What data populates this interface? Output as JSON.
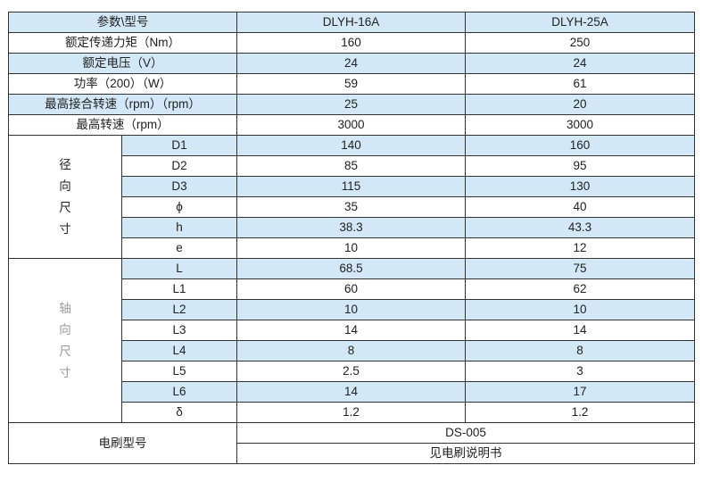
{
  "colors": {
    "shade": "#d3e8f7",
    "border": "#333333"
  },
  "header": {
    "param": "参数\\型号",
    "models": [
      "DLYH-16A",
      "DLYH-25A"
    ]
  },
  "general": [
    {
      "label": "额定传递力矩（Nm）",
      "values": [
        "160",
        "250"
      ]
    },
    {
      "label": "额定电压（V）",
      "values": [
        "24",
        "24"
      ]
    },
    {
      "label": "功率（200）（W）",
      "values": [
        "59",
        "61"
      ]
    },
    {
      "label": "最高接合转速（rpm）（rpm）",
      "values": [
        "25",
        "20"
      ]
    },
    {
      "label": "最高转速（rpm）",
      "values": [
        "3000",
        "3000"
      ]
    }
  ],
  "radial": {
    "group_label": [
      "径",
      "向",
      "尺",
      "寸"
    ],
    "rows": [
      {
        "label": "D1",
        "values": [
          "140",
          "160"
        ]
      },
      {
        "label": "D2",
        "values": [
          "85",
          "95"
        ]
      },
      {
        "label": "D3",
        "values": [
          "115",
          "130"
        ]
      },
      {
        "label": "ϕ",
        "values": [
          "35",
          "40"
        ]
      },
      {
        "label": "h",
        "values": [
          "38.3",
          "43.3"
        ]
      },
      {
        "label": "e",
        "values": [
          "10",
          "12"
        ]
      }
    ]
  },
  "axial": {
    "group_label": [
      "轴",
      "向",
      "尺",
      "寸"
    ],
    "rows": [
      {
        "label": "L",
        "values": [
          "68.5",
          "75"
        ]
      },
      {
        "label": "L1",
        "values": [
          "60",
          "62"
        ]
      },
      {
        "label": "L2",
        "values": [
          "10",
          "10"
        ]
      },
      {
        "label": "L3",
        "values": [
          "14",
          "14"
        ]
      },
      {
        "label": "L4",
        "values": [
          "8",
          "8"
        ]
      },
      {
        "label": "L5",
        "values": [
          "2.5",
          "3"
        ]
      },
      {
        "label": "L6",
        "values": [
          "14",
          "17"
        ]
      },
      {
        "label": "δ",
        "values": [
          "1.2",
          "1.2"
        ]
      }
    ]
  },
  "brush": {
    "label": "电刷型号",
    "model": "DS-005",
    "note": "见电刷说明书"
  }
}
